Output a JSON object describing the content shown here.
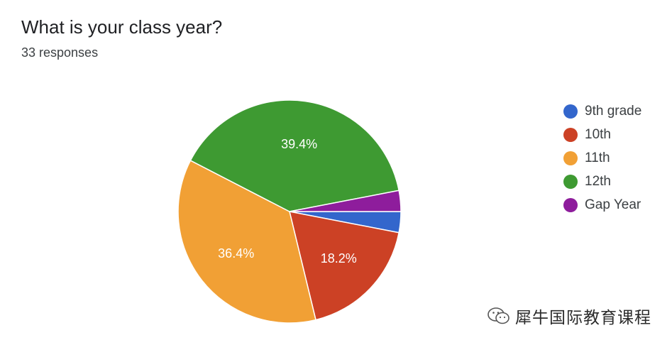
{
  "header": {
    "title": "What is your class year?",
    "subtitle": "33 responses"
  },
  "watermark": {
    "text": "犀牛国际教育课程"
  },
  "chart_data": {
    "type": "pie",
    "title": "What is your class year?",
    "subtitle": "33 responses",
    "legend_position": "right",
    "slices": [
      {
        "label": "9th grade",
        "value": 1,
        "percent_label": "",
        "color": "#3366cc"
      },
      {
        "label": "10th",
        "value": 6,
        "percent_label": "18.2%",
        "color": "#cc4125"
      },
      {
        "label": "11th",
        "value": 12,
        "percent_label": "36.4%",
        "color": "#f1a035"
      },
      {
        "label": "12th",
        "value": 13,
        "percent_label": "39.4%",
        "color": "#3e9a32"
      },
      {
        "label": "Gap Year",
        "value": 1,
        "percent_label": "",
        "color": "#8e1d9c"
      }
    ]
  }
}
